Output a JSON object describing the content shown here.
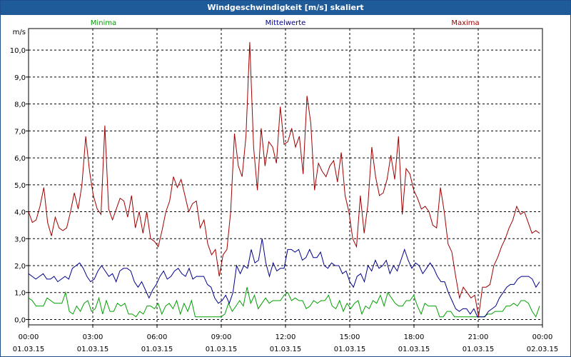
{
  "window": {
    "title": "Windgeschwindigkeit [m/s] skaliert"
  },
  "chart_data": {
    "type": "line",
    "title": "Windgeschwindigkeit [m/s] skaliert",
    "ylabel": "m/s",
    "xlabel": "",
    "ylim": [
      -0.2,
      10.8
    ],
    "xlim_hours": [
      0,
      24
    ],
    "grid": true,
    "legend_position": "top",
    "y_ticks": [
      "0,0",
      "1,0",
      "2,0",
      "3,0",
      "4,0",
      "5,0",
      "6,0",
      "7,0",
      "8,0",
      "9,0",
      "10,0"
    ],
    "x_ticks": [
      {
        "time": "00:00",
        "date": "01.03.15"
      },
      {
        "time": "03:00",
        "date": "01.03.15"
      },
      {
        "time": "06:00",
        "date": "01.03.15"
      },
      {
        "time": "09:00",
        "date": "01.03.15"
      },
      {
        "time": "12:00",
        "date": "01.03.15"
      },
      {
        "time": "15:00",
        "date": "01.03.15"
      },
      {
        "time": "18:00",
        "date": "01.03.15"
      },
      {
        "time": "21:00",
        "date": "01.03.15"
      },
      {
        "time": "00:00",
        "date": "02.03.15"
      }
    ],
    "series": [
      {
        "name": "Minima",
        "color": "#00a000",
        "values": [
          0.8,
          0.7,
          0.5,
          0.5,
          0.5,
          0.8,
          0.7,
          0.6,
          0.6,
          0.6,
          1.0,
          0.3,
          0.2,
          0.5,
          0.3,
          0.6,
          0.7,
          0.3,
          0.4,
          0.8,
          0.2,
          0.7,
          0.3,
          0.3,
          0.6,
          0.5,
          0.6,
          0.2,
          0.2,
          0.1,
          0.3,
          0.2,
          0.5,
          0.5,
          0.4,
          0.6,
          0.2,
          0.5,
          0.6,
          0.4,
          0.7,
          0.2,
          0.6,
          0.3,
          0.7,
          0.1,
          0.1,
          0.1,
          0.1,
          0.1,
          0.1,
          0.1,
          0.1,
          0.2,
          0.6,
          0.3,
          0.5,
          0.7,
          0.5,
          1.2,
          0.6,
          0.9,
          0.4,
          0.6,
          0.8,
          0.6,
          0.7,
          0.7,
          0.7,
          0.9,
          1.0,
          0.7,
          0.8,
          0.7,
          0.7,
          0.4,
          0.5,
          0.7,
          0.6,
          0.7,
          0.7,
          0.9,
          0.5,
          0.4,
          0.7,
          0.3,
          0.6,
          0.4,
          0.6,
          0.7,
          0.2,
          0.5,
          0.4,
          0.7,
          0.6,
          0.9,
          0.5,
          1.0,
          0.8,
          0.6,
          0.5,
          0.5,
          0.7,
          0.7,
          0.9,
          0.5,
          0.2,
          0.6,
          0.5,
          0.5,
          0.5,
          0.1,
          0.1,
          0.3,
          0.3,
          0.1,
          0.1,
          0.1,
          0.1,
          0.1,
          0.1,
          0.1,
          0.1,
          0.1,
          0.2,
          0.2,
          0.3,
          0.3,
          0.3,
          0.5,
          0.5,
          0.6,
          0.5,
          0.7,
          0.7,
          0.6,
          0.3,
          0.1,
          0.5
        ]
      },
      {
        "name": "Mittelwerte",
        "color": "#00008b",
        "values": [
          1.7,
          1.6,
          1.5,
          1.6,
          1.7,
          1.5,
          1.5,
          1.6,
          1.4,
          1.5,
          1.6,
          1.5,
          1.9,
          2.0,
          2.1,
          1.9,
          1.6,
          1.4,
          1.5,
          1.8,
          2.0,
          1.8,
          1.6,
          1.7,
          1.4,
          1.8,
          1.9,
          1.9,
          1.8,
          1.4,
          1.2,
          1.4,
          1.1,
          0.8,
          1.1,
          1.3,
          1.6,
          1.8,
          1.5,
          1.6,
          1.8,
          1.9,
          1.7,
          1.6,
          1.9,
          1.5,
          1.6,
          1.6,
          1.6,
          1.3,
          1.2,
          0.8,
          0.6,
          0.7,
          0.9,
          0.6,
          1.0,
          2.0,
          1.7,
          2.0,
          1.9,
          2.6,
          2.1,
          2.2,
          3.0,
          2.1,
          1.6,
          2.1,
          1.8,
          1.9,
          1.9,
          2.6,
          2.6,
          2.5,
          2.6,
          2.2,
          2.3,
          2.6,
          2.3,
          2.3,
          2.5,
          2.0,
          1.9,
          2.1,
          2.0,
          2.0,
          1.7,
          1.8,
          1.4,
          1.2,
          1.6,
          1.7,
          1.4,
          2.0,
          1.8,
          2.2,
          1.9,
          2.0,
          2.2,
          1.7,
          2.0,
          1.8,
          2.2,
          2.6,
          2.2,
          1.9,
          2.1,
          2.0,
          1.7,
          1.9,
          2.1,
          1.9,
          1.6,
          1.4,
          1.4,
          1.0,
          0.7,
          0.4,
          0.3,
          0.4,
          0.4,
          0.2,
          0.4,
          0.1,
          0.1,
          0.1,
          0.3,
          0.4,
          0.5,
          0.8,
          1.0,
          1.2,
          1.3,
          1.3,
          1.5,
          1.6,
          1.6,
          1.6,
          1.5,
          1.2,
          1.4
        ]
      },
      {
        "name": "Maxima",
        "color": "#a00000",
        "values": [
          4.0,
          3.6,
          3.7,
          4.2,
          4.9,
          3.6,
          3.1,
          3.8,
          3.4,
          3.3,
          3.4,
          4.0,
          4.7,
          4.1,
          5.0,
          6.8,
          5.5,
          4.6,
          4.1,
          3.9,
          7.2,
          4.1,
          3.7,
          4.1,
          4.5,
          4.4,
          3.8,
          4.6,
          3.4,
          4.0,
          3.2,
          4.0,
          3.0,
          2.9,
          2.7,
          3.3,
          4.0,
          4.4,
          5.3,
          4.9,
          5.2,
          4.6,
          4.0,
          4.3,
          4.4,
          3.4,
          3.7,
          2.8,
          2.4,
          2.6,
          1.6,
          2.4,
          2.6,
          4.0,
          6.9,
          5.7,
          5.3,
          6.8,
          10.3,
          6.4,
          4.8,
          7.1,
          5.7,
          6.6,
          6.4,
          5.8,
          7.9,
          6.5,
          6.6,
          7.1,
          6.4,
          6.8,
          5.4,
          8.3,
          7.3,
          4.8,
          5.8,
          5.5,
          5.3,
          5.7,
          5.9,
          5.1,
          6.2,
          4.6,
          4.0,
          3.0,
          2.7,
          4.6,
          3.2,
          4.3,
          6.4,
          5.3,
          4.6,
          4.7,
          5.2,
          6.1,
          5.2,
          6.8,
          3.9,
          5.6,
          5.4,
          4.8,
          4.5,
          4.1,
          4.2,
          4.0,
          3.5,
          3.4,
          4.9,
          4.0,
          2.8,
          2.5,
          1.6,
          0.8,
          1.2,
          1.0,
          0.8,
          0.9,
          0.1,
          1.2,
          1.2,
          1.3,
          2.0,
          2.3,
          2.7,
          3.0,
          3.4,
          3.7,
          4.2,
          3.9,
          4.0,
          3.6,
          3.2,
          3.3,
          3.2
        ]
      }
    ]
  }
}
